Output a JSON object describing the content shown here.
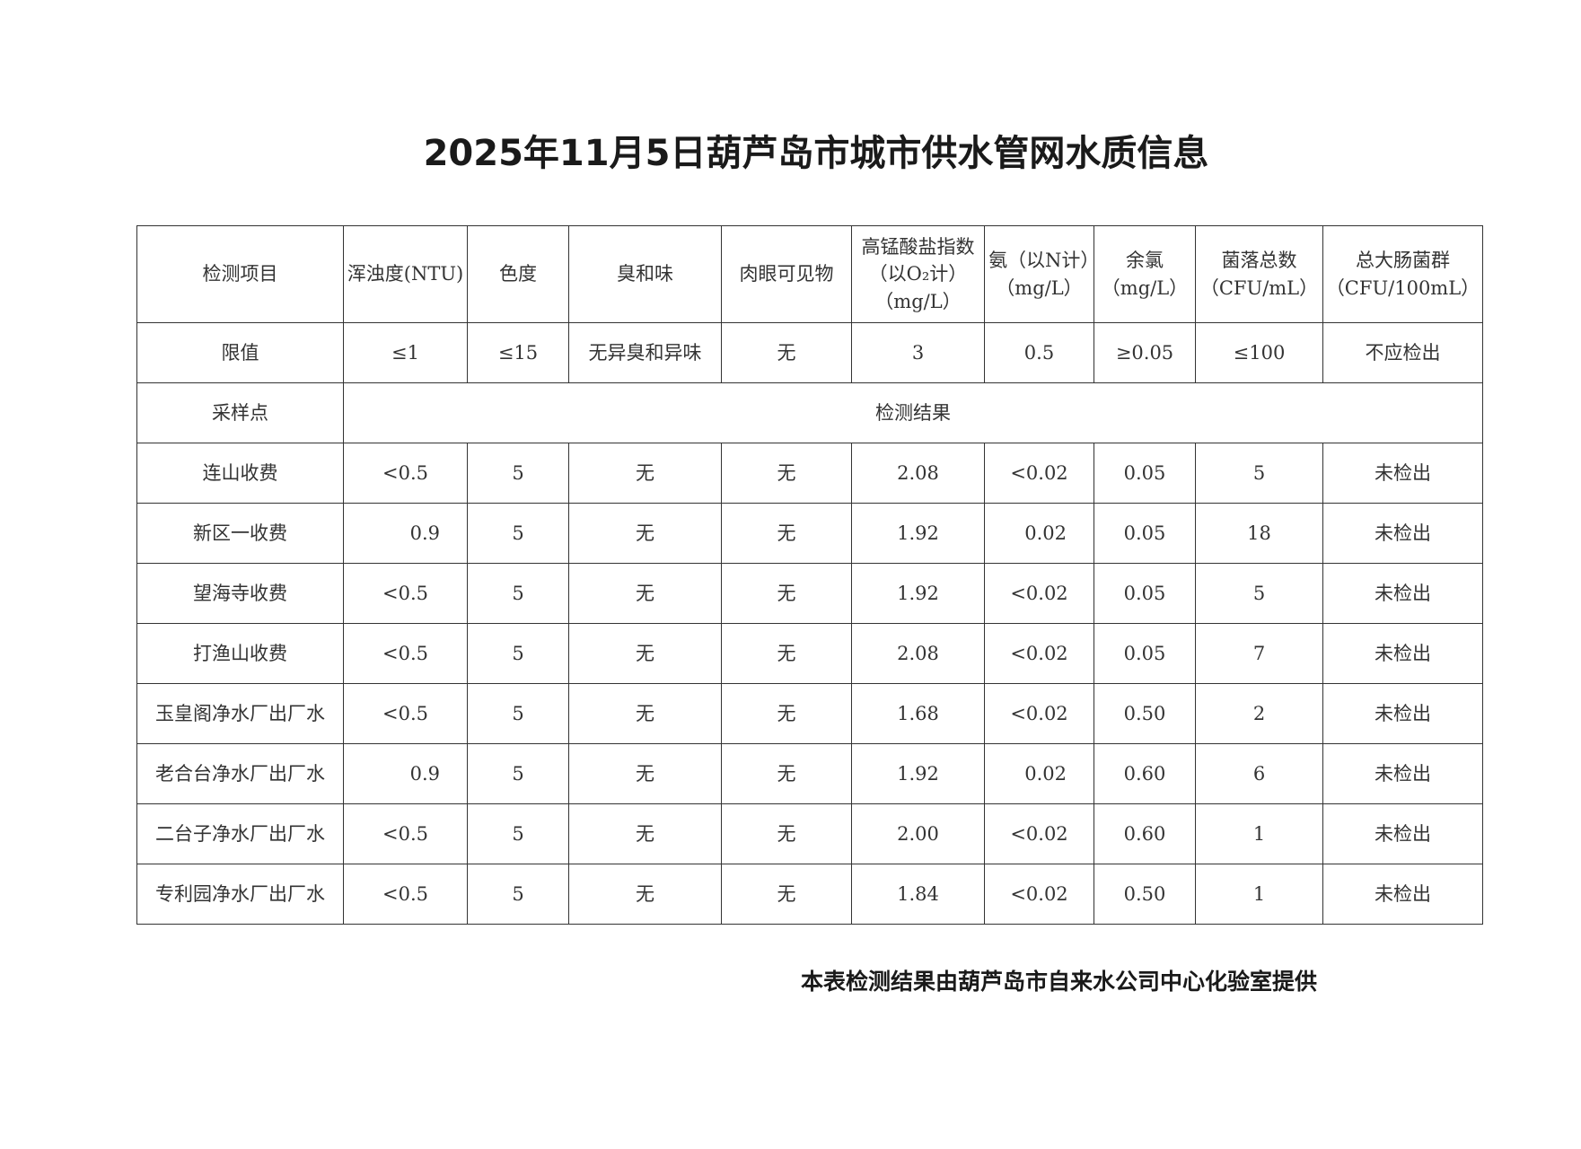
{
  "title": "2025年11月5日葫芦岛市城市供水管网水质信息",
  "headers": [
    "检测项目",
    "浑浊度(NTU)",
    "色度",
    "臭和味",
    "肉眼可见物",
    "高锰酸盐指数（以O₂计）（mg/L）",
    "氨（以N计）（mg/L）",
    "余氯（mg/L）",
    "菌落总数（CFU/mL）",
    "总大肠菌群（CFU/100mL）"
  ],
  "limits_label": "限值",
  "limits": [
    "≤1",
    "≤15",
    "无异臭和异味",
    "无",
    "3",
    "0.5",
    "≥0.05",
    "≤100",
    "不应检出"
  ],
  "sample_label": "采样点",
  "results_label": "检测结果",
  "rows": [
    [
      "连山收费",
      "<0.5",
      "5",
      "无",
      "无",
      "2.08",
      "<0.02",
      "0.05",
      "5",
      "未检出"
    ],
    [
      "新区一收费",
      "0.9",
      "5",
      "无",
      "无",
      "1.92",
      "0.02",
      "0.05",
      "18",
      "未检出"
    ],
    [
      "望海寺收费",
      "<0.5",
      "5",
      "无",
      "无",
      "1.92",
      "<0.02",
      "0.05",
      "5",
      "未检出"
    ],
    [
      "打渔山收费",
      "<0.5",
      "5",
      "无",
      "无",
      "2.08",
      "<0.02",
      "0.05",
      "7",
      "未检出"
    ],
    [
      "玉皇阁净水厂出厂水",
      "<0.5",
      "5",
      "无",
      "无",
      "1.68",
      "<0.02",
      "0.50",
      "2",
      "未检出"
    ],
    [
      "老合台净水厂出厂水",
      "0.9",
      "5",
      "无",
      "无",
      "1.92",
      "0.02",
      "0.60",
      "6",
      "未检出"
    ],
    [
      "二台子净水厂出厂水",
      "<0.5",
      "5",
      "无",
      "无",
      "2.00",
      "<0.02",
      "0.60",
      "1",
      "未检出"
    ],
    [
      "专利园净水厂出厂水",
      "<0.5",
      "5",
      "无",
      "无",
      "1.84",
      "<0.02",
      "0.50",
      "1",
      "未检出"
    ]
  ],
  "footer": "本表检测结果由葫芦岛市自来水公司中心化验室提供"
}
